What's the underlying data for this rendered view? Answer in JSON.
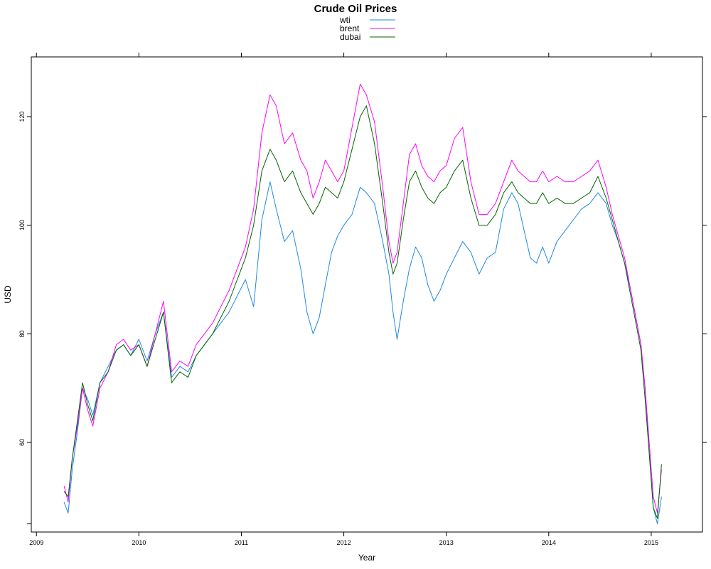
{
  "chart_data": {
    "type": "line",
    "title": "Crude Oil Prices",
    "xlabel": "Year",
    "ylabel": "USD",
    "xlim": [
      2008.95,
      2015.5
    ],
    "ylim": [
      43.5,
      131
    ],
    "x_ticks": [
      2009,
      2010,
      2011,
      2012,
      2013,
      2014,
      2015
    ],
    "y_ticks": [
      60,
      80,
      100,
      120
    ],
    "legend_position": "top-center",
    "grid": false,
    "series": [
      {
        "name": "wti",
        "color": "#1e88e5",
        "x": [
          2009.27,
          2009.31,
          2009.35,
          2009.4,
          2009.45,
          2009.5,
          2009.55,
          2009.62,
          2009.7,
          2009.78,
          2009.85,
          2009.92,
          2010.0,
          2010.08,
          2010.16,
          2010.24,
          2010.32,
          2010.4,
          2010.48,
          2010.56,
          2010.64,
          2010.72,
          2010.8,
          2010.88,
          2010.96,
          2011.04,
          2011.12,
          2011.2,
          2011.28,
          2011.34,
          2011.42,
          2011.5,
          2011.58,
          2011.64,
          2011.7,
          2011.76,
          2011.82,
          2011.88,
          2011.94,
          2012.0,
          2012.08,
          2012.16,
          2012.22,
          2012.3,
          2012.38,
          2012.44,
          2012.48,
          2012.52,
          2012.58,
          2012.64,
          2012.7,
          2012.76,
          2012.82,
          2012.88,
          2012.94,
          2013.0,
          2013.08,
          2013.16,
          2013.24,
          2013.32,
          2013.4,
          2013.48,
          2013.56,
          2013.64,
          2013.7,
          2013.76,
          2013.82,
          2013.88,
          2013.94,
          2014.0,
          2014.08,
          2014.16,
          2014.24,
          2014.32,
          2014.4,
          2014.48,
          2014.56,
          2014.62,
          2014.68,
          2014.74,
          2014.8,
          2014.86,
          2014.9,
          2014.94,
          2014.98,
          2015.02,
          2015.06,
          2015.1
        ],
        "values": [
          49,
          47,
          55,
          62,
          70,
          68,
          65,
          71,
          74,
          77,
          78,
          76,
          79,
          75,
          80,
          84,
          72,
          74,
          73,
          76,
          78,
          80,
          82,
          84,
          87,
          90,
          85,
          101,
          108,
          103,
          97,
          99,
          92,
          84,
          80,
          83,
          89,
          95,
          98,
          100,
          102,
          107,
          106,
          104,
          97,
          91,
          84,
          79,
          86,
          92,
          96,
          94,
          89,
          86,
          88,
          91,
          94,
          97,
          95,
          91,
          94,
          95,
          103,
          106,
          104,
          99,
          94,
          93,
          96,
          93,
          97,
          99,
          101,
          103,
          104,
          106,
          104,
          100,
          97,
          93,
          88,
          82,
          78,
          70,
          58,
          48,
          45,
          50
        ]
      },
      {
        "name": "brent",
        "color": "#ff00ff",
        "x": [
          2009.27,
          2009.31,
          2009.35,
          2009.4,
          2009.45,
          2009.5,
          2009.55,
          2009.62,
          2009.7,
          2009.78,
          2009.85,
          2009.92,
          2010.0,
          2010.08,
          2010.16,
          2010.24,
          2010.32,
          2010.4,
          2010.48,
          2010.56,
          2010.64,
          2010.72,
          2010.8,
          2010.88,
          2010.96,
          2011.04,
          2011.12,
          2011.2,
          2011.28,
          2011.34,
          2011.42,
          2011.5,
          2011.58,
          2011.64,
          2011.7,
          2011.76,
          2011.82,
          2011.88,
          2011.94,
          2012.0,
          2012.08,
          2012.16,
          2012.22,
          2012.3,
          2012.38,
          2012.44,
          2012.48,
          2012.52,
          2012.58,
          2012.64,
          2012.7,
          2012.76,
          2012.82,
          2012.88,
          2012.94,
          2013.0,
          2013.08,
          2013.16,
          2013.24,
          2013.32,
          2013.4,
          2013.48,
          2013.56,
          2013.64,
          2013.7,
          2013.76,
          2013.82,
          2013.88,
          2013.94,
          2014.0,
          2014.08,
          2014.16,
          2014.24,
          2014.32,
          2014.4,
          2014.48,
          2014.56,
          2014.62,
          2014.68,
          2014.74,
          2014.8,
          2014.86,
          2014.9,
          2014.94,
          2014.98,
          2015.02,
          2015.06,
          2015.1
        ],
        "values": [
          52,
          49,
          57,
          63,
          70,
          66,
          63,
          70,
          73,
          78,
          79,
          77,
          78,
          74,
          80,
          86,
          73,
          75,
          74,
          78,
          80,
          82,
          85,
          88,
          92,
          96,
          103,
          117,
          124,
          122,
          115,
          117,
          112,
          110,
          105,
          108,
          112,
          110,
          108,
          110,
          118,
          126,
          124,
          119,
          107,
          97,
          93,
          95,
          104,
          113,
          115,
          111,
          109,
          108,
          110,
          111,
          116,
          118,
          108,
          102,
          102,
          104,
          108,
          112,
          110,
          109,
          108,
          108,
          110,
          108,
          109,
          108,
          108,
          109,
          110,
          112,
          107,
          102,
          98,
          94,
          88,
          82,
          78,
          70,
          60,
          50,
          47,
          55
        ]
      },
      {
        "name": "dubai",
        "color": "#006400",
        "x": [
          2009.27,
          2009.31,
          2009.35,
          2009.4,
          2009.45,
          2009.5,
          2009.55,
          2009.62,
          2009.7,
          2009.78,
          2009.85,
          2009.92,
          2010.0,
          2010.08,
          2010.16,
          2010.24,
          2010.32,
          2010.4,
          2010.48,
          2010.56,
          2010.64,
          2010.72,
          2010.8,
          2010.88,
          2010.96,
          2011.04,
          2011.12,
          2011.2,
          2011.28,
          2011.34,
          2011.42,
          2011.5,
          2011.58,
          2011.64,
          2011.7,
          2011.76,
          2011.82,
          2011.88,
          2011.94,
          2012.0,
          2012.08,
          2012.16,
          2012.22,
          2012.3,
          2012.38,
          2012.44,
          2012.48,
          2012.52,
          2012.58,
          2012.64,
          2012.7,
          2012.76,
          2012.82,
          2012.88,
          2012.94,
          2013.0,
          2013.08,
          2013.16,
          2013.24,
          2013.32,
          2013.4,
          2013.48,
          2013.56,
          2013.64,
          2013.7,
          2013.76,
          2013.82,
          2013.88,
          2013.94,
          2014.0,
          2014.08,
          2014.16,
          2014.24,
          2014.32,
          2014.4,
          2014.48,
          2014.56,
          2014.62,
          2014.68,
          2014.74,
          2014.8,
          2014.86,
          2014.9,
          2014.94,
          2014.98,
          2015.02,
          2015.06,
          2015.1
        ],
        "values": [
          51,
          50,
          57,
          64,
          71,
          67,
          64,
          71,
          73,
          77,
          78,
          76,
          78,
          74,
          79,
          84,
          71,
          73,
          72,
          76,
          78,
          80,
          83,
          86,
          90,
          94,
          100,
          110,
          114,
          112,
          108,
          110,
          106,
          104,
          102,
          104,
          107,
          106,
          105,
          108,
          114,
          120,
          122,
          115,
          104,
          95,
          91,
          93,
          101,
          108,
          110,
          107,
          105,
          104,
          106,
          107,
          110,
          112,
          105,
          100,
          100,
          102,
          106,
          108,
          106,
          105,
          104,
          104,
          106,
          104,
          105,
          104,
          104,
          105,
          106,
          109,
          105,
          101,
          97,
          93,
          87,
          81,
          77,
          68,
          58,
          48,
          46,
          56
        ]
      }
    ]
  }
}
